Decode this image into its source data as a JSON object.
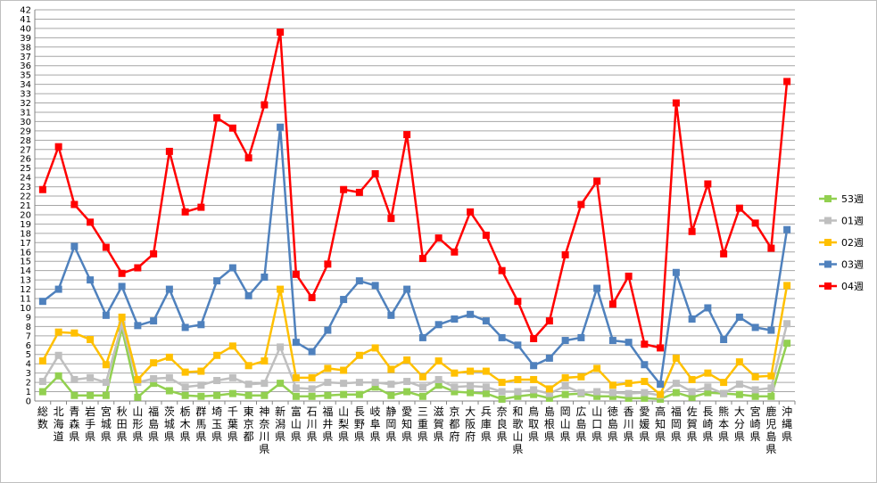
{
  "chart_data": {
    "type": "line",
    "ylim": [
      0,
      42
    ],
    "yticks": [
      0,
      1,
      2,
      3,
      4,
      5,
      6,
      7,
      8,
      9,
      10,
      11,
      12,
      13,
      14,
      15,
      16,
      17,
      18,
      19,
      20,
      21,
      22,
      23,
      24,
      25,
      26,
      27,
      28,
      29,
      30,
      31,
      32,
      33,
      34,
      35,
      36,
      37,
      38,
      39,
      40,
      41,
      42
    ],
    "grid": true,
    "legend_position": "right",
    "categories": [
      "総数",
      "北海道",
      "青森県",
      "岩手県",
      "宮城県",
      "秋田県",
      "山形県",
      "福島県",
      "茨城県",
      "栃木県",
      "群馬県",
      "埼玉県",
      "千葉県",
      "東京都",
      "神奈川県",
      "新潟県",
      "富山県",
      "石川県",
      "福井県",
      "山梨県",
      "長野県",
      "岐阜県",
      "静岡県",
      "愛知県",
      "三重県",
      "滋賀県",
      "京都府",
      "大阪府",
      "兵庫県",
      "奈良県",
      "和歌山県",
      "鳥取県",
      "島根県",
      "岡山県",
      "広島県",
      "山口県",
      "徳島県",
      "香川県",
      "愛媛県",
      "高知県",
      "福岡県",
      "佐賀県",
      "長崎県",
      "熊本県",
      "大分県",
      "宮崎県",
      "鹿児島県",
      "沖縄県"
    ],
    "series": [
      {
        "name": "53週",
        "color": "#92d050",
        "values": [
          1.0,
          2.7,
          0.6,
          0.6,
          0.6,
          7.8,
          0.4,
          1.9,
          1.1,
          0.6,
          0.5,
          0.6,
          0.8,
          0.6,
          0.6,
          1.9,
          0.5,
          0.5,
          0.6,
          0.7,
          0.7,
          1.5,
          0.6,
          1.0,
          0.5,
          1.7,
          1.0,
          0.9,
          0.8,
          0.2,
          0.5,
          0.7,
          0.3,
          0.7,
          0.8,
          0.5,
          0.5,
          0.3,
          0.3,
          0.2,
          0.9,
          0.4,
          0.9,
          0.8,
          0.7,
          0.5,
          0.5,
          6.2
        ]
      },
      {
        "name": "01週",
        "color": "#bfbfbf",
        "values": [
          2.1,
          4.9,
          2.3,
          2.5,
          2.0,
          8.2,
          2.0,
          2.4,
          2.5,
          1.5,
          1.7,
          2.2,
          2.5,
          1.8,
          1.9,
          5.8,
          1.4,
          1.3,
          2.0,
          1.9,
          2.0,
          2.0,
          1.8,
          2.1,
          1.5,
          2.3,
          1.5,
          1.6,
          1.5,
          1.0,
          1.0,
          1.2,
          0.8,
          1.6,
          0.9,
          1.0,
          0.9,
          0.8,
          0.9,
          0.6,
          1.9,
          1.0,
          1.5,
          0.8,
          1.8,
          1.2,
          1.4,
          8.3
        ]
      },
      {
        "name": "02週",
        "color": "#ffc000",
        "values": [
          4.3,
          7.4,
          7.3,
          6.6,
          3.9,
          9.0,
          2.3,
          4.1,
          4.7,
          3.1,
          3.2,
          4.9,
          5.9,
          3.8,
          4.3,
          12.0,
          2.5,
          2.5,
          3.5,
          3.3,
          4.9,
          5.7,
          3.4,
          4.4,
          2.6,
          4.3,
          3.0,
          3.2,
          3.2,
          2.0,
          2.3,
          2.3,
          1.3,
          2.5,
          2.6,
          3.5,
          1.7,
          1.9,
          2.1,
          0.7,
          4.6,
          2.3,
          3.0,
          2.0,
          4.2,
          2.6,
          2.7,
          12.4
        ]
      },
      {
        "name": "03週",
        "color": "#4f81bd",
        "values": [
          10.7,
          12.0,
          16.6,
          13.0,
          9.2,
          12.3,
          8.1,
          8.6,
          12.0,
          7.9,
          8.2,
          12.9,
          14.3,
          11.3,
          13.3,
          29.4,
          6.3,
          5.3,
          7.6,
          10.9,
          12.9,
          12.4,
          9.2,
          12.0,
          6.8,
          8.2,
          8.8,
          9.3,
          8.6,
          6.8,
          6.0,
          3.8,
          4.6,
          6.5,
          6.8,
          12.1,
          6.5,
          6.3,
          3.9,
          1.8,
          13.8,
          8.8,
          10.0,
          6.6,
          9.0,
          7.9,
          7.6,
          18.4
        ]
      },
      {
        "name": "04週",
        "color": "#ff0000",
        "values": [
          22.7,
          27.3,
          21.1,
          19.2,
          16.5,
          13.7,
          14.3,
          15.8,
          26.8,
          20.3,
          20.8,
          30.4,
          29.3,
          26.1,
          31.8,
          39.6,
          13.6,
          11.1,
          14.7,
          22.7,
          22.4,
          24.4,
          19.6,
          28.6,
          15.3,
          17.5,
          16.0,
          20.3,
          17.8,
          14.0,
          10.7,
          6.7,
          8.6,
          15.7,
          21.1,
          23.6,
          10.4,
          13.4,
          6.1,
          5.7,
          32.0,
          18.2,
          23.3,
          15.8,
          20.7,
          19.1,
          16.4,
          34.3
        ]
      }
    ]
  }
}
